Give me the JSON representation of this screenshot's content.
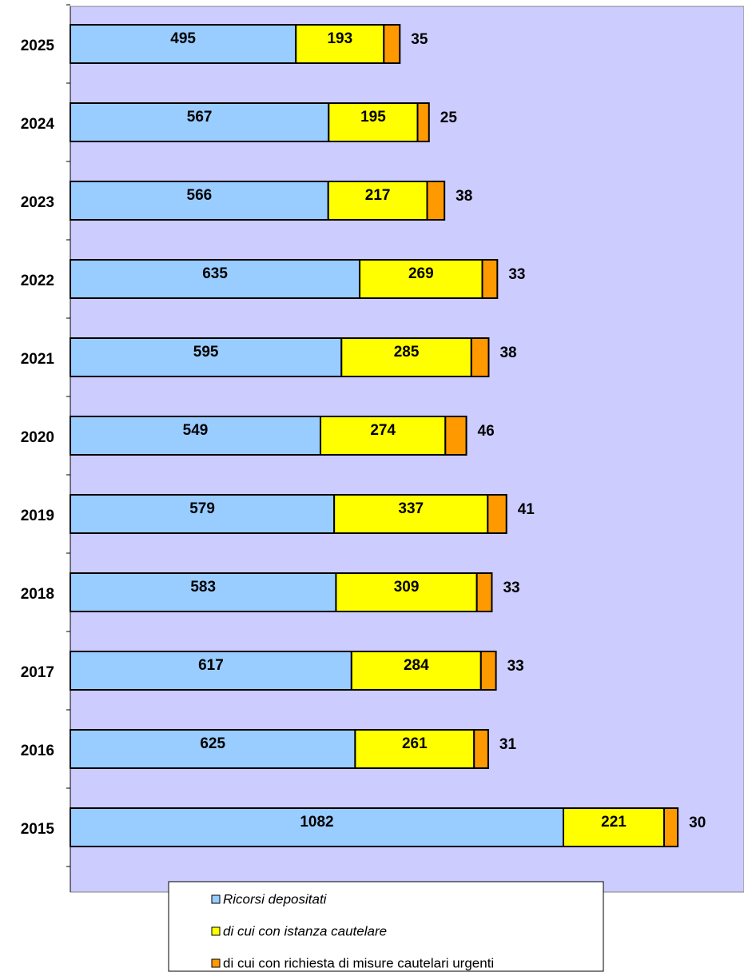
{
  "chart_data": {
    "type": "stacked-barh",
    "categories": [
      "2025",
      "2024",
      "2023",
      "2022",
      "2021",
      "2020",
      "2019",
      "2018",
      "2017",
      "2016",
      "2015"
    ],
    "series": [
      {
        "name": "Ricorsi depositati",
        "color": "#99ccff",
        "values": [
          495,
          567,
          566,
          635,
          595,
          549,
          579,
          583,
          617,
          625,
          1082
        ]
      },
      {
        "name": "di cui con istanza cautelare",
        "color": "#ffff00",
        "values": [
          193,
          195,
          217,
          269,
          285,
          274,
          337,
          309,
          284,
          261,
          221
        ]
      },
      {
        "name": "di cui con richiesta di misure cautelari urgenti",
        "color": "#ff9900",
        "values": [
          35,
          25,
          38,
          33,
          38,
          46,
          41,
          33,
          33,
          31,
          30
        ]
      }
    ],
    "background": "#ccccff"
  }
}
